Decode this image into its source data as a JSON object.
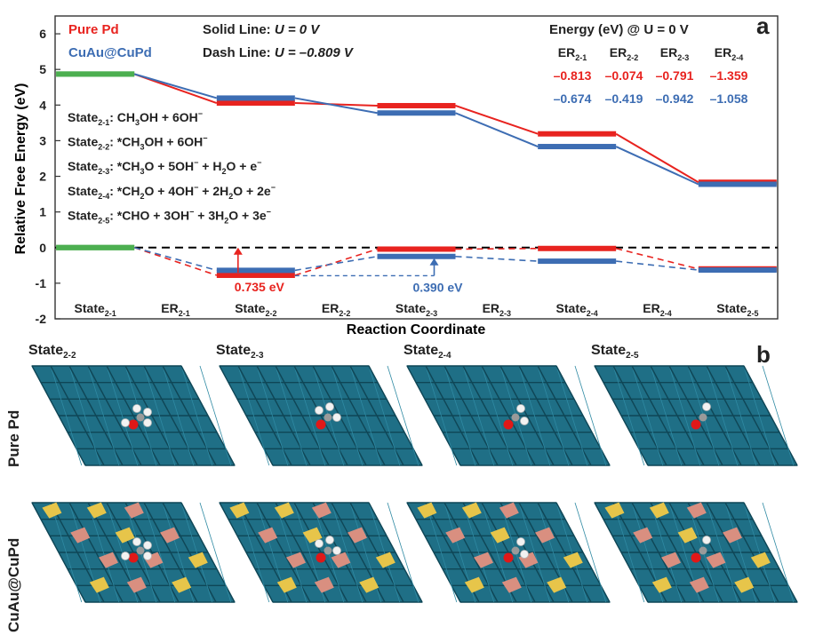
{
  "panel_a_label": "a",
  "panel_b_label": "b",
  "legend": {
    "pure_pd": "Pure Pd",
    "cuau": "CuAu@CuPd",
    "solid_prefix": "Solid Line: ",
    "solid_cond": "U = 0 V",
    "dash_prefix": "Dash Line: ",
    "dash_cond": "U = –0.809 V"
  },
  "energy_table": {
    "title": "Energy (eV) @ U = 0 V",
    "headers": [
      {
        "main": "ER",
        "sub": "2-1"
      },
      {
        "main": "ER",
        "sub": "2-2"
      },
      {
        "main": "ER",
        "sub": "2-3"
      },
      {
        "main": "ER",
        "sub": "2-4"
      }
    ],
    "pure_pd": [
      "–0.813",
      "–0.074",
      "–0.791",
      "–1.359"
    ],
    "cuau": [
      "–0.674",
      "–0.419",
      "–0.942",
      "–1.058"
    ]
  },
  "state_definitions": [
    [
      {
        "t": "State"
      },
      {
        "t": "2-1",
        "s": "sub"
      },
      {
        "t": ": CH"
      },
      {
        "t": "3",
        "s": "sub"
      },
      {
        "t": "OH + 6OH"
      },
      {
        "t": "−",
        "s": "sup"
      }
    ],
    [
      {
        "t": "State"
      },
      {
        "t": "2-2",
        "s": "sub"
      },
      {
        "t": ": *CH"
      },
      {
        "t": "3",
        "s": "sub"
      },
      {
        "t": "OH + 6OH"
      },
      {
        "t": "−",
        "s": "sup"
      }
    ],
    [
      {
        "t": "State"
      },
      {
        "t": "2-3",
        "s": "sub"
      },
      {
        "t": ": *CH"
      },
      {
        "t": "3",
        "s": "sub"
      },
      {
        "t": "O + 5OH"
      },
      {
        "t": "−",
        "s": "sup"
      },
      {
        "t": " + H"
      },
      {
        "t": "2",
        "s": "sub"
      },
      {
        "t": "O + e"
      },
      {
        "t": "−",
        "s": "sup"
      }
    ],
    [
      {
        "t": "State"
      },
      {
        "t": "2-4",
        "s": "sub"
      },
      {
        "t": ": *CH"
      },
      {
        "t": "2",
        "s": "sub"
      },
      {
        "t": "O + 4OH"
      },
      {
        "t": "−",
        "s": "sup"
      },
      {
        "t": " + 2H"
      },
      {
        "t": "2",
        "s": "sub"
      },
      {
        "t": "O + 2e"
      },
      {
        "t": "−",
        "s": "sup"
      }
    ],
    [
      {
        "t": "State"
      },
      {
        "t": "2-5",
        "s": "sub"
      },
      {
        "t": ": *CHO + 3OH"
      },
      {
        "t": "−",
        "s": "sup"
      },
      {
        "t": " + 3H"
      },
      {
        "t": "2",
        "s": "sub"
      },
      {
        "t": "O + 3e"
      },
      {
        "t": "−",
        "s": "sup"
      }
    ]
  ],
  "annotations": {
    "pure_pd_gap": "0.735 eV",
    "cuau_gap": "0.390 eV"
  },
  "chart_data": {
    "type": "line",
    "xlabel": "Reaction Coordinate",
    "ylabel": "Relative Free Energy (eV)",
    "ylim": [
      -2,
      6.5
    ],
    "yticks": [
      -2,
      -1,
      0,
      1,
      2,
      3,
      4,
      5,
      6
    ],
    "x_labels": [
      {
        "main": "State",
        "sub": "2-1"
      },
      {
        "main": "ER",
        "sub": "2-1"
      },
      {
        "main": "State",
        "sub": "2-2"
      },
      {
        "main": "ER",
        "sub": "2-2"
      },
      {
        "main": "State",
        "sub": "2-3"
      },
      {
        "main": "ER",
        "sub": "2-3"
      },
      {
        "main": "State",
        "sub": "2-4"
      },
      {
        "main": "ER",
        "sub": "2-4"
      },
      {
        "main": "State",
        "sub": "2-5"
      }
    ],
    "states": [
      "State2-1",
      "State2-2",
      "State2-3",
      "State2-4",
      "State2-5"
    ],
    "series": [
      {
        "name": "Pure Pd",
        "potential": "U = 0 V",
        "style": "solid",
        "color": "#e8231f",
        "values": [
          4.87,
          4.057,
          3.983,
          3.192,
          1.833
        ]
      },
      {
        "name": "CuAu@CuPd",
        "potential": "U = 0 V",
        "style": "solid",
        "color": "#3d6db3",
        "values": [
          4.87,
          4.196,
          3.777,
          2.835,
          1.777
        ]
      },
      {
        "name": "Pure Pd",
        "potential": "U = –0.809 V",
        "style": "dash",
        "color": "#e8231f",
        "values": [
          0,
          -0.778,
          -0.043,
          -0.025,
          -0.598
        ]
      },
      {
        "name": "CuAu@CuPd",
        "potential": "U = –0.809 V",
        "style": "dash",
        "color": "#3d6db3",
        "values": [
          0,
          -0.639,
          -0.249,
          -0.382,
          -0.631
        ]
      }
    ],
    "zero_line": {
      "value": 0,
      "style": "dash",
      "color": "#000000"
    }
  },
  "panel_b": {
    "columns": [
      {
        "main": "State",
        "sub": "2-2"
      },
      {
        "main": "State",
        "sub": "2-3"
      },
      {
        "main": "State",
        "sub": "2-4"
      },
      {
        "main": "State",
        "sub": "2-5"
      }
    ],
    "rows": [
      "Pure Pd",
      "CuAu@CuPd"
    ],
    "colors": {
      "pd": "#1f6f86",
      "cu": "#d98f80",
      "au": "#e7c54a",
      "o": "#e01818",
      "h": "#f2f2f2",
      "c": "#9a9a9a"
    }
  }
}
